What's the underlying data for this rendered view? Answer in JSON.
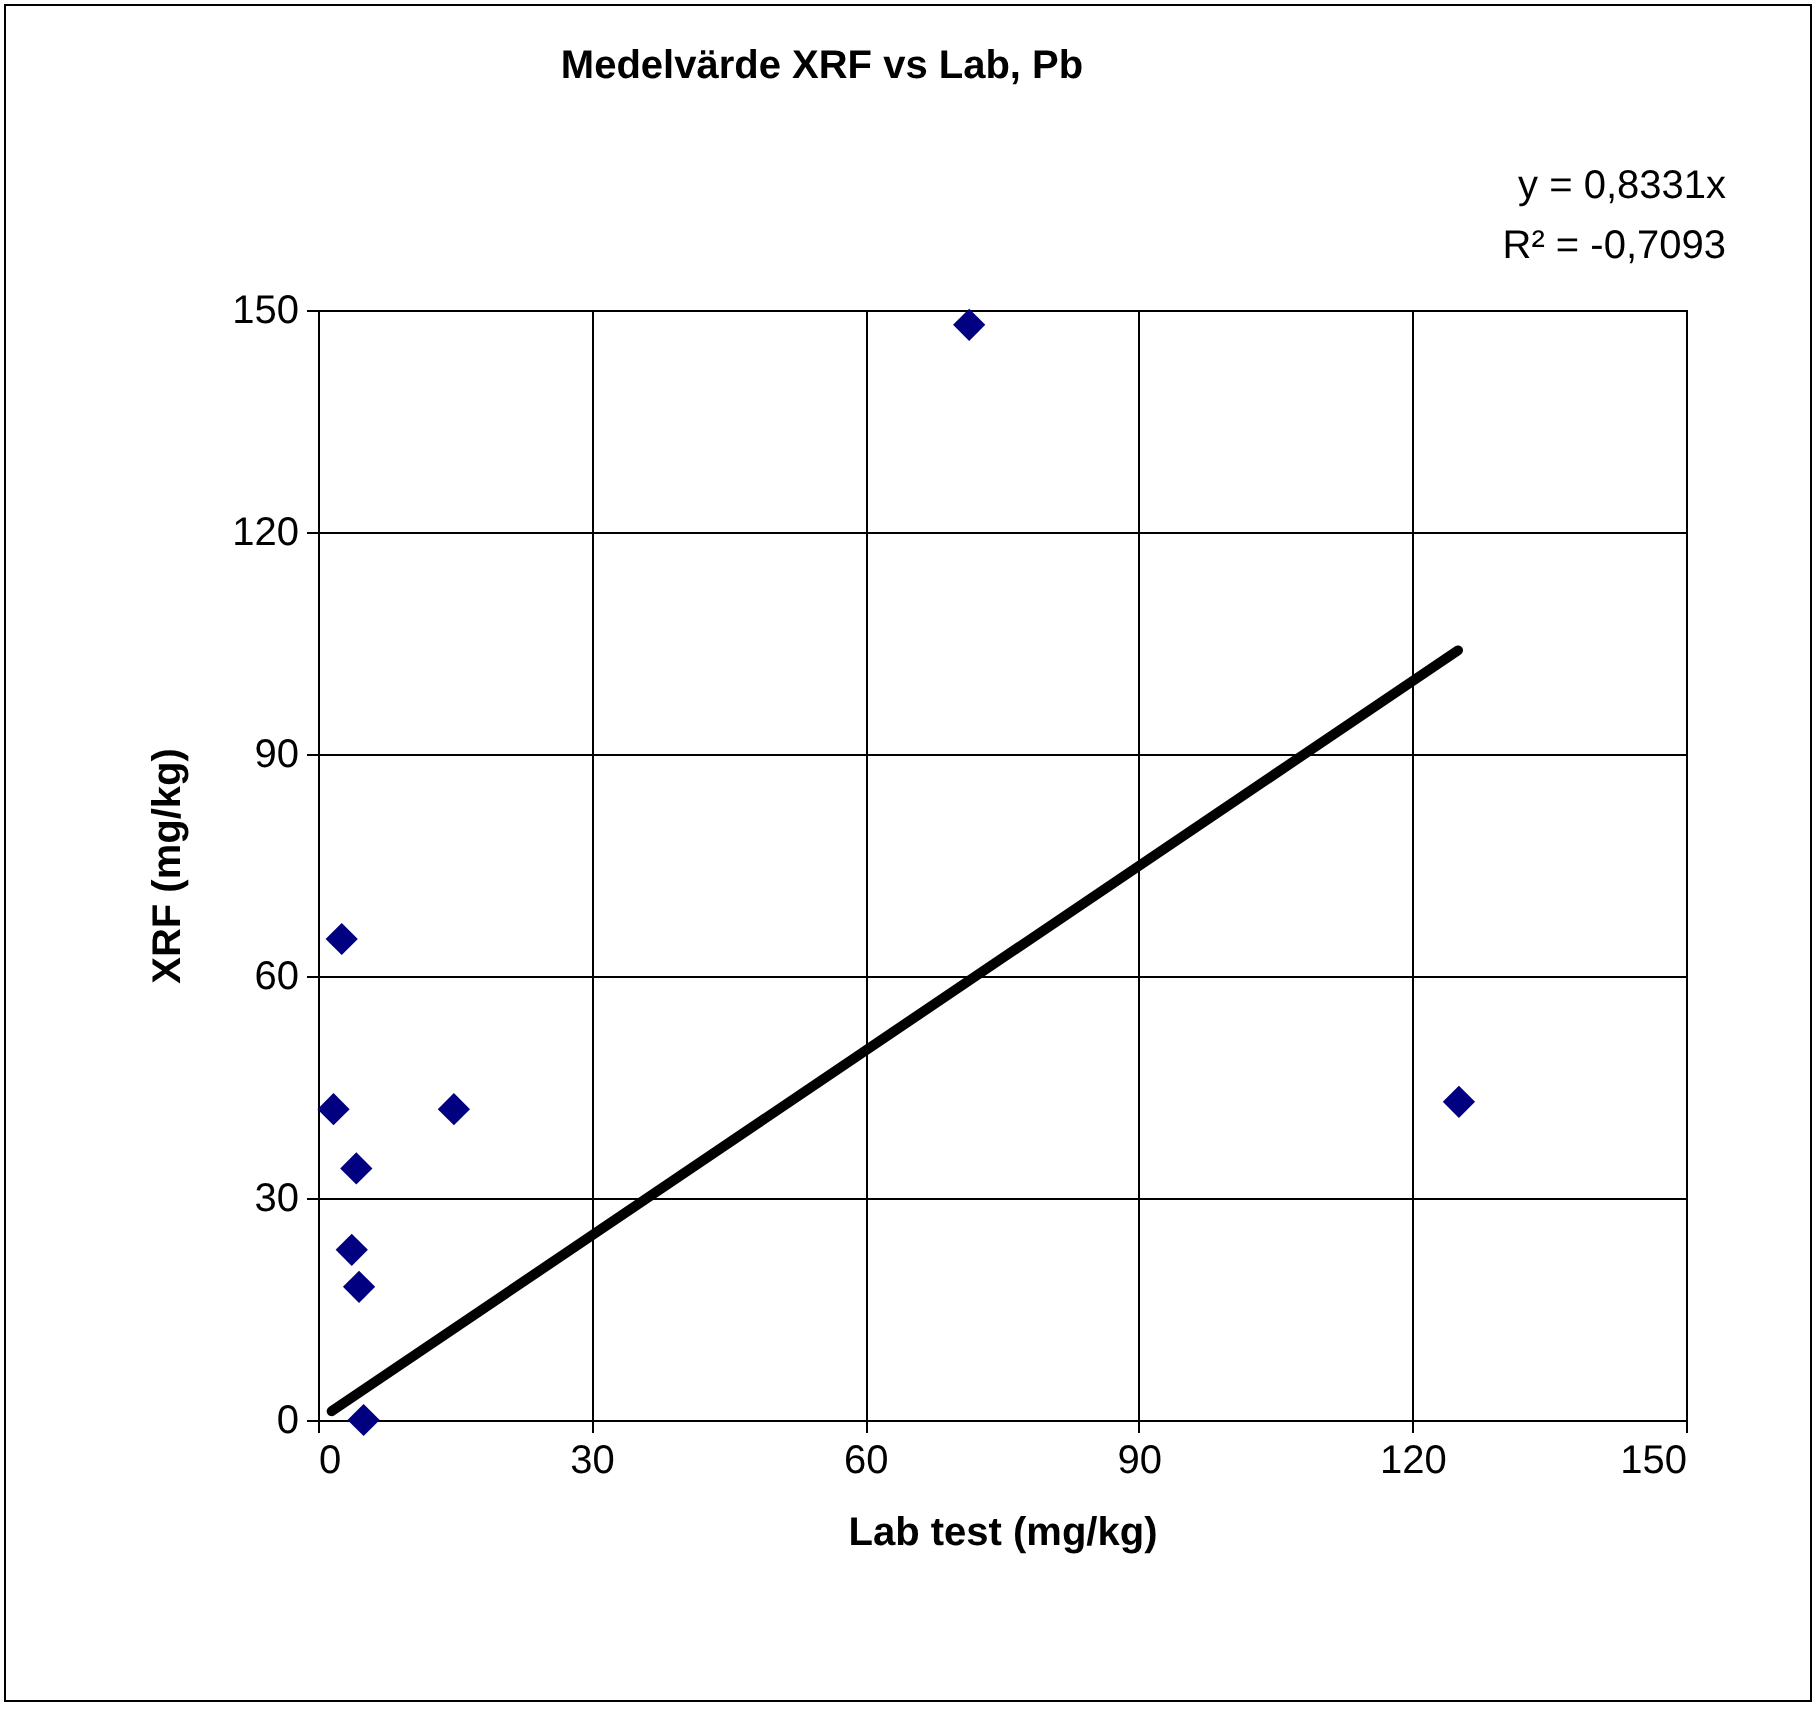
{
  "chart_data": {
    "type": "scatter",
    "title": "Medelvärde XRF vs Lab, Pb",
    "xlabel": "Lab test (mg/kg)",
    "ylabel": "XRF (mg/kg)",
    "xlim": [
      0,
      150
    ],
    "xticks": [
      0,
      30,
      60,
      90,
      120,
      150
    ],
    "ylim": [
      0,
      150
    ],
    "yticks": [
      0,
      30,
      60,
      90,
      120,
      150
    ],
    "grid": true,
    "annotations": [
      "y = 0,8331x",
      "R² = -0,7093"
    ],
    "series": [
      {
        "marker": "diamond",
        "color": "#000080",
        "x": [
          71.4,
          2.6,
          1.7,
          14.9,
          4.2,
          3.7,
          4.5,
          5.0,
          125.1
        ],
        "values": [
          148,
          65,
          42,
          42,
          34,
          23,
          18,
          0,
          43
        ]
      },
      {
        "type": "line",
        "marker": "none",
        "line_style": "solid",
        "color": "#000000",
        "x": [
          1.5,
          125
        ],
        "values": [
          1.2,
          104
        ]
      }
    ]
  }
}
